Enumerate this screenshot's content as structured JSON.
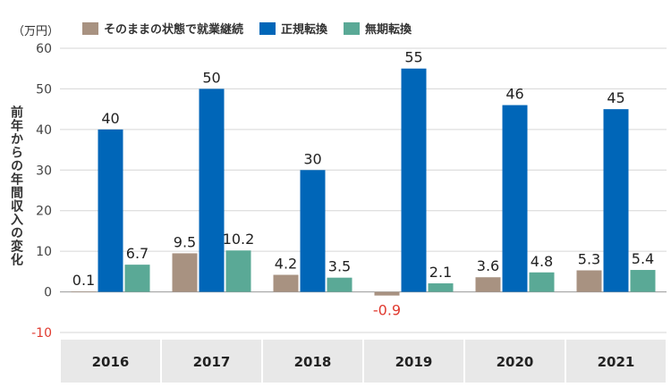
{
  "chart_data": {
    "type": "bar",
    "categories": [
      "2016",
      "2017",
      "2018",
      "2019",
      "2020",
      "2021"
    ],
    "series": [
      {
        "name": "そのままの状態で就業継続",
        "color": "#a89281",
        "values": [
          0.1,
          9.5,
          4.2,
          -0.9,
          3.6,
          5.3
        ]
      },
      {
        "name": "正規転換",
        "color": "#0066b8",
        "values": [
          40,
          50,
          30,
          55,
          46,
          45
        ]
      },
      {
        "name": "無期転換",
        "color": "#5aa996",
        "values": [
          6.7,
          10.2,
          3.5,
          2.1,
          4.8,
          5.4
        ]
      }
    ],
    "data_labels": [
      [
        "0.1",
        "9.5",
        "4.2",
        "-0.9",
        "3.6",
        "5.3"
      ],
      [
        "40",
        "50",
        "30",
        "55",
        "46",
        "45"
      ],
      [
        "6.7",
        "10.2",
        "3.5",
        "2.1",
        "4.8",
        "5.4"
      ]
    ],
    "yticks": [
      "-10",
      "0",
      "10",
      "20",
      "30",
      "40",
      "50",
      "60"
    ],
    "ylim": [
      -10,
      60
    ],
    "unit": "（万円）",
    "ylabel": "前年からの年間収入の変化",
    "xlabel": "",
    "grid": true,
    "legend_position": "top",
    "negative_label_color": "#e03a2f"
  }
}
